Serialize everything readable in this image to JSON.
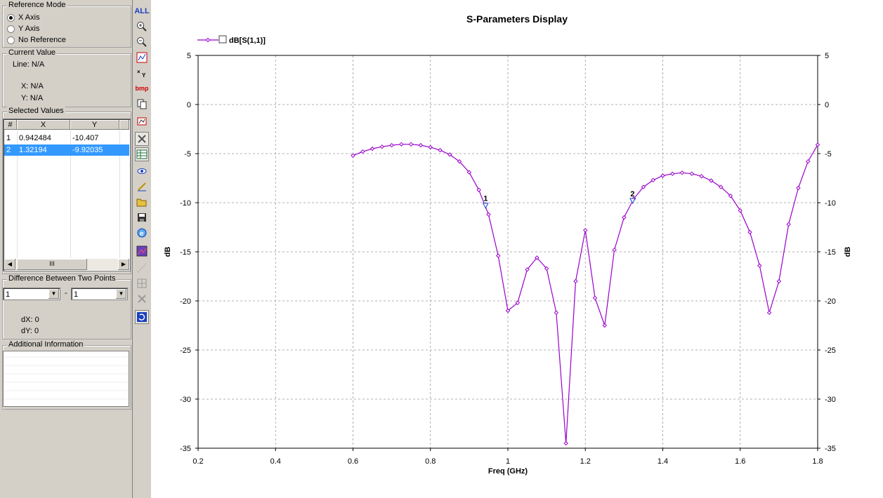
{
  "reference_mode": {
    "title": "Reference Mode",
    "options": [
      {
        "label": "X Axis",
        "selected": true
      },
      {
        "label": "Y Axis",
        "selected": false
      },
      {
        "label": "No Reference",
        "selected": false
      }
    ]
  },
  "current_value": {
    "title": "Current Value",
    "line": "Line: N/A",
    "x": "X: N/A",
    "y": "Y: N/A"
  },
  "selected_values": {
    "title": "Selected Values",
    "columns": [
      "#",
      "X",
      "Y"
    ],
    "rows": [
      {
        "num": "1",
        "x": "0.942484",
        "y": "-10.407",
        "selected": false
      },
      {
        "num": "2",
        "x": "1.32194",
        "y": "-9.92035",
        "selected": true
      }
    ],
    "scroll_thumb": "III"
  },
  "difference": {
    "title": "Difference Between Two Points",
    "from": "1",
    "separator": "-",
    "to": "1",
    "dx": "dX: 0",
    "dy": "dY: 0"
  },
  "additional_info": {
    "title": "Additional Information"
  },
  "toolbar": {
    "buttons": [
      {
        "name": "show-all-button",
        "icon": "ALL"
      },
      {
        "name": "zoom-in-icon",
        "icon": "zoom-in"
      },
      {
        "name": "zoom-out-icon",
        "icon": "zoom-out"
      },
      {
        "name": "chart-type-icon",
        "icon": "chart"
      },
      {
        "name": "xy-icon",
        "icon": "xy"
      },
      {
        "name": "bmp-button",
        "icon": "bmp"
      },
      {
        "name": "copy-icon",
        "icon": "copy"
      },
      {
        "name": "marker-icon",
        "icon": "marker"
      },
      {
        "name": "tools-icon",
        "icon": "tools"
      },
      {
        "name": "table-icon",
        "icon": "table"
      },
      {
        "name": "view-icon",
        "icon": "eye"
      },
      {
        "name": "pen-icon",
        "icon": "pen"
      },
      {
        "name": "open-folder-icon",
        "icon": "folder"
      },
      {
        "name": "save-icon",
        "icon": "floppy"
      },
      {
        "name": "browser-icon",
        "icon": "ie"
      },
      {
        "name": "image-icon",
        "icon": "image"
      },
      {
        "name": "curve-disabled-icon",
        "icon": "curve"
      },
      {
        "name": "grid-disabled-icon",
        "icon": "grid"
      },
      {
        "name": "delete-disabled-icon",
        "icon": "x"
      },
      {
        "name": "refresh-icon",
        "icon": "refresh"
      }
    ]
  },
  "chart_data": {
    "type": "line",
    "title": "S-Parameters Display",
    "xlabel": "Freq (GHz)",
    "ylabel": "dB",
    "ylabel_right": "dB",
    "xlim": [
      0.2,
      1.8
    ],
    "ylim": [
      -35,
      5
    ],
    "xticks": [
      "0.2",
      "0.4",
      "0.6",
      "0.8",
      "1",
      "1.2",
      "1.4",
      "1.6",
      "1.8"
    ],
    "yticks": [
      "5",
      "0",
      "-5",
      "-10",
      "-15",
      "-20",
      "-25",
      "-30",
      "-35"
    ],
    "xtick_values": [
      0.2,
      0.4,
      0.6,
      0.8,
      1.0,
      1.2,
      1.4,
      1.6,
      1.8
    ],
    "ytick_values": [
      5,
      0,
      -5,
      -10,
      -15,
      -20,
      -25,
      -30,
      -35
    ],
    "grid": true,
    "legend_position": "top-left",
    "series": [
      {
        "name": "dB[S(1,1)]",
        "color": "#9900cc",
        "x": [
          0.6,
          0.625,
          0.65,
          0.675,
          0.7,
          0.725,
          0.75,
          0.775,
          0.8,
          0.825,
          0.85,
          0.875,
          0.9,
          0.925,
          0.95,
          0.975,
          1.0,
          1.025,
          1.05,
          1.075,
          1.1,
          1.125,
          1.15,
          1.175,
          1.2,
          1.225,
          1.25,
          1.275,
          1.3,
          1.325,
          1.35,
          1.375,
          1.4,
          1.425,
          1.45,
          1.475,
          1.5,
          1.525,
          1.55,
          1.575,
          1.6,
          1.625,
          1.65,
          1.675,
          1.7,
          1.725,
          1.75,
          1.775,
          1.8
        ],
        "y": [
          -5.2,
          -4.8,
          -4.5,
          -4.3,
          -4.15,
          -4.05,
          -4.05,
          -4.15,
          -4.35,
          -4.65,
          -5.1,
          -5.8,
          -6.9,
          -8.7,
          -11.2,
          -15.4,
          -21.0,
          -20.2,
          -16.8,
          -15.6,
          -16.7,
          -21.2,
          -34.5,
          -18.0,
          -12.8,
          -19.7,
          -22.5,
          -14.8,
          -11.5,
          -9.6,
          -8.4,
          -7.7,
          -7.25,
          -7.05,
          -6.95,
          -7.05,
          -7.3,
          -7.75,
          -8.4,
          -9.3,
          -10.8,
          -13.0,
          -16.4,
          -21.2,
          -18.0,
          -12.2,
          -8.5,
          -5.8,
          -4.1
        ]
      }
    ],
    "markers": [
      {
        "label": "1",
        "x": 0.942484,
        "y": -10.407
      },
      {
        "label": "2",
        "x": 1.32194,
        "y": -9.92035
      }
    ]
  }
}
